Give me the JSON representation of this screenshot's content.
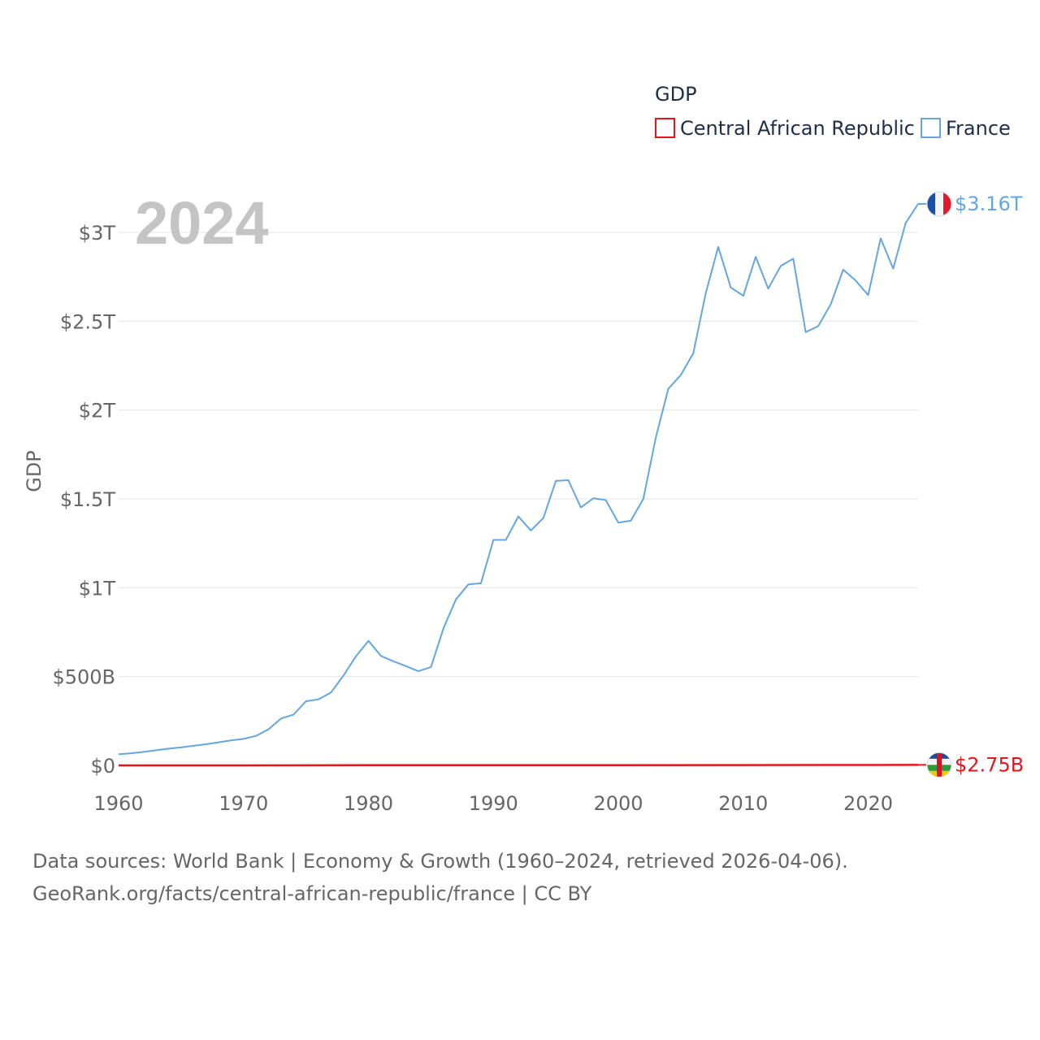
{
  "chart_data": {
    "type": "line",
    "legend_title": "GDP",
    "ylabel": "GDP",
    "year_label": "2024",
    "xlim": [
      1960,
      2024
    ],
    "ylim": [
      0,
      3.3
    ],
    "x_ticks": [
      1960,
      1970,
      1980,
      1990,
      2000,
      2010,
      2020
    ],
    "y_ticks": [
      {
        "value": 0,
        "label": "$0"
      },
      {
        "value": 0.5,
        "label": "$500B"
      },
      {
        "value": 1,
        "label": "$1T"
      },
      {
        "value": 1.5,
        "label": "$1.5T"
      },
      {
        "value": 2,
        "label": "$2T"
      },
      {
        "value": 2.5,
        "label": "$2.5T"
      },
      {
        "value": 3,
        "label": "$3T"
      }
    ],
    "units": "trillions USD",
    "series": [
      {
        "name": "Central African Republic",
        "color": "#e8141b",
        "end_label": "$2.75B",
        "years": [
          1960,
          1970,
          1980,
          1990,
          2000,
          2010,
          2020,
          2024
        ],
        "values": [
          0.0001,
          0.0002,
          0.0008,
          0.0015,
          0.0009,
          0.002,
          0.0024,
          0.00275
        ]
      },
      {
        "name": "France",
        "color": "#63a6e3",
        "end_label": "$3.16T",
        "years": [
          1960,
          1961,
          1962,
          1963,
          1964,
          1965,
          1966,
          1967,
          1968,
          1969,
          1970,
          1971,
          1972,
          1973,
          1974,
          1975,
          1976,
          1977,
          1978,
          1979,
          1980,
          1981,
          1982,
          1983,
          1984,
          1985,
          1986,
          1987,
          1988,
          1989,
          1990,
          1991,
          1992,
          1993,
          1994,
          1995,
          1996,
          1997,
          1998,
          1999,
          2000,
          2001,
          2002,
          2003,
          2004,
          2005,
          2006,
          2007,
          2008,
          2009,
          2010,
          2011,
          2012,
          2013,
          2014,
          2015,
          2016,
          2017,
          2018,
          2019,
          2020,
          2021,
          2022,
          2023,
          2024
        ],
        "values": [
          0.063,
          0.068,
          0.076,
          0.085,
          0.094,
          0.101,
          0.11,
          0.119,
          0.13,
          0.141,
          0.149,
          0.166,
          0.203,
          0.264,
          0.286,
          0.361,
          0.372,
          0.41,
          0.506,
          0.614,
          0.701,
          0.616,
          0.586,
          0.559,
          0.53,
          0.553,
          0.771,
          0.934,
          1.019,
          1.025,
          1.269,
          1.269,
          1.401,
          1.322,
          1.393,
          1.601,
          1.605,
          1.452,
          1.503,
          1.493,
          1.366,
          1.377,
          1.5,
          1.844,
          2.119,
          2.197,
          2.32,
          2.657,
          2.918,
          2.69,
          2.643,
          2.863,
          2.683,
          2.811,
          2.852,
          2.439,
          2.472,
          2.595,
          2.79,
          2.729,
          2.647,
          2.966,
          2.796,
          3.052,
          3.16
        ]
      }
    ]
  },
  "footer": {
    "line1": "Data sources: World Bank | Economy & Growth (1960–2024, retrieved 2026-04-06).",
    "line2": "GeoRank.org/facts/central-african-republic/france | CC BY"
  }
}
